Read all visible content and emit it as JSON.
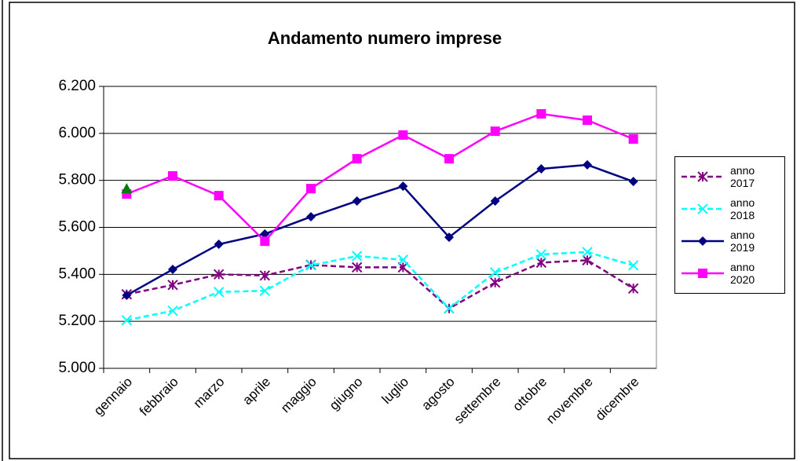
{
  "chart_data": {
    "type": "line",
    "title": "Andamento numero imprese",
    "categories": [
      "gennaio",
      "febbraio",
      "marzo",
      "aprile",
      "maggio",
      "giugno",
      "luglio",
      "agosto",
      "settembre",
      "ottobre",
      "novembre",
      "dicembre"
    ],
    "series": [
      {
        "name": "anno 2017",
        "color": "#800080",
        "dashed": true,
        "marker": "asterisk",
        "values": [
          5315,
          5355,
          5400,
          5395,
          5440,
          5430,
          5430,
          5255,
          5365,
          5450,
          5460,
          5340
        ]
      },
      {
        "name": "anno 2018",
        "color": "#00ffff",
        "dashed": true,
        "marker": "cross",
        "values": [
          5205,
          5245,
          5325,
          5330,
          5438,
          5478,
          5462,
          5255,
          5408,
          5485,
          5495,
          5438
        ]
      },
      {
        "name": "anno 2019",
        "color": "#000080",
        "dashed": false,
        "marker": "diamond",
        "values": [
          5311,
          5421,
          5528,
          5572,
          5645,
          5712,
          5775,
          5558,
          5712,
          5849,
          5866,
          5795
        ]
      },
      {
        "name": "anno 2020",
        "color": "#ff00ff",
        "dashed": false,
        "marker": "square",
        "values": [
          5742,
          5819,
          5735,
          5541,
          5765,
          5892,
          5993,
          5892,
          6009,
          6083,
          6056,
          5976
        ]
      }
    ],
    "extra_point": {
      "category": "gennaio",
      "value": 5765,
      "color": "#008000",
      "marker": "triangle"
    },
    "ylim": [
      5000,
      6200
    ],
    "yticks": [
      {
        "value": 5000,
        "label": "5.000"
      },
      {
        "value": 5200,
        "label": "5.200"
      },
      {
        "value": 5400,
        "label": "5.400"
      },
      {
        "value": 5600,
        "label": "5.600"
      },
      {
        "value": 5800,
        "label": "5.800"
      },
      {
        "value": 6000,
        "label": "6.000"
      },
      {
        "value": 6200,
        "label": "6.200"
      }
    ],
    "grid": true
  }
}
